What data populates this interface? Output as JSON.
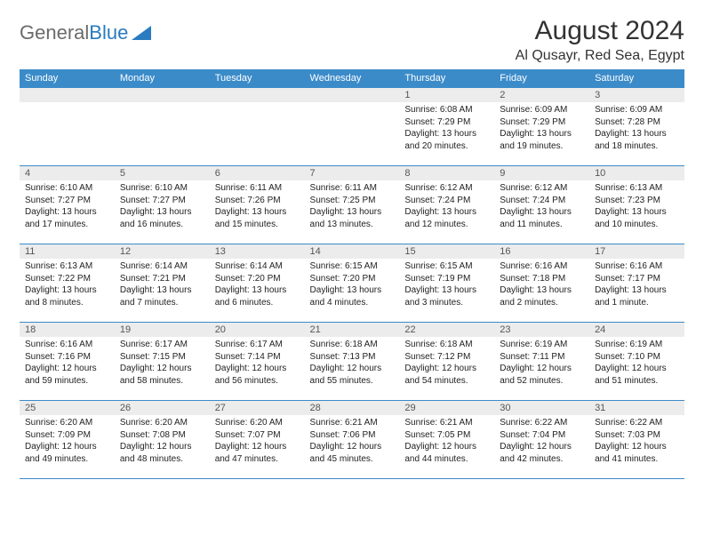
{
  "brand": {
    "word1": "General",
    "word2": "Blue"
  },
  "title": "August 2024",
  "location": "Al Qusayr, Red Sea, Egypt",
  "colors": {
    "header_bg": "#3b8bc9",
    "header_fg": "#ffffff",
    "daynum_bg": "#ececec",
    "border": "#3b8bc9",
    "logo_gray": "#6b6b6b",
    "logo_blue": "#2a7bbf",
    "text": "#222222"
  },
  "weekdays": [
    "Sunday",
    "Monday",
    "Tuesday",
    "Wednesday",
    "Thursday",
    "Friday",
    "Saturday"
  ],
  "weeks": [
    [
      {
        "n": "",
        "sr": "",
        "ss": "",
        "dl": ""
      },
      {
        "n": "",
        "sr": "",
        "ss": "",
        "dl": ""
      },
      {
        "n": "",
        "sr": "",
        "ss": "",
        "dl": ""
      },
      {
        "n": "",
        "sr": "",
        "ss": "",
        "dl": ""
      },
      {
        "n": "1",
        "sr": "Sunrise: 6:08 AM",
        "ss": "Sunset: 7:29 PM",
        "dl": "Daylight: 13 hours and 20 minutes."
      },
      {
        "n": "2",
        "sr": "Sunrise: 6:09 AM",
        "ss": "Sunset: 7:29 PM",
        "dl": "Daylight: 13 hours and 19 minutes."
      },
      {
        "n": "3",
        "sr": "Sunrise: 6:09 AM",
        "ss": "Sunset: 7:28 PM",
        "dl": "Daylight: 13 hours and 18 minutes."
      }
    ],
    [
      {
        "n": "4",
        "sr": "Sunrise: 6:10 AM",
        "ss": "Sunset: 7:27 PM",
        "dl": "Daylight: 13 hours and 17 minutes."
      },
      {
        "n": "5",
        "sr": "Sunrise: 6:10 AM",
        "ss": "Sunset: 7:27 PM",
        "dl": "Daylight: 13 hours and 16 minutes."
      },
      {
        "n": "6",
        "sr": "Sunrise: 6:11 AM",
        "ss": "Sunset: 7:26 PM",
        "dl": "Daylight: 13 hours and 15 minutes."
      },
      {
        "n": "7",
        "sr": "Sunrise: 6:11 AM",
        "ss": "Sunset: 7:25 PM",
        "dl": "Daylight: 13 hours and 13 minutes."
      },
      {
        "n": "8",
        "sr": "Sunrise: 6:12 AM",
        "ss": "Sunset: 7:24 PM",
        "dl": "Daylight: 13 hours and 12 minutes."
      },
      {
        "n": "9",
        "sr": "Sunrise: 6:12 AM",
        "ss": "Sunset: 7:24 PM",
        "dl": "Daylight: 13 hours and 11 minutes."
      },
      {
        "n": "10",
        "sr": "Sunrise: 6:13 AM",
        "ss": "Sunset: 7:23 PM",
        "dl": "Daylight: 13 hours and 10 minutes."
      }
    ],
    [
      {
        "n": "11",
        "sr": "Sunrise: 6:13 AM",
        "ss": "Sunset: 7:22 PM",
        "dl": "Daylight: 13 hours and 8 minutes."
      },
      {
        "n": "12",
        "sr": "Sunrise: 6:14 AM",
        "ss": "Sunset: 7:21 PM",
        "dl": "Daylight: 13 hours and 7 minutes."
      },
      {
        "n": "13",
        "sr": "Sunrise: 6:14 AM",
        "ss": "Sunset: 7:20 PM",
        "dl": "Daylight: 13 hours and 6 minutes."
      },
      {
        "n": "14",
        "sr": "Sunrise: 6:15 AM",
        "ss": "Sunset: 7:20 PM",
        "dl": "Daylight: 13 hours and 4 minutes."
      },
      {
        "n": "15",
        "sr": "Sunrise: 6:15 AM",
        "ss": "Sunset: 7:19 PM",
        "dl": "Daylight: 13 hours and 3 minutes."
      },
      {
        "n": "16",
        "sr": "Sunrise: 6:16 AM",
        "ss": "Sunset: 7:18 PM",
        "dl": "Daylight: 13 hours and 2 minutes."
      },
      {
        "n": "17",
        "sr": "Sunrise: 6:16 AM",
        "ss": "Sunset: 7:17 PM",
        "dl": "Daylight: 13 hours and 1 minute."
      }
    ],
    [
      {
        "n": "18",
        "sr": "Sunrise: 6:16 AM",
        "ss": "Sunset: 7:16 PM",
        "dl": "Daylight: 12 hours and 59 minutes."
      },
      {
        "n": "19",
        "sr": "Sunrise: 6:17 AM",
        "ss": "Sunset: 7:15 PM",
        "dl": "Daylight: 12 hours and 58 minutes."
      },
      {
        "n": "20",
        "sr": "Sunrise: 6:17 AM",
        "ss": "Sunset: 7:14 PM",
        "dl": "Daylight: 12 hours and 56 minutes."
      },
      {
        "n": "21",
        "sr": "Sunrise: 6:18 AM",
        "ss": "Sunset: 7:13 PM",
        "dl": "Daylight: 12 hours and 55 minutes."
      },
      {
        "n": "22",
        "sr": "Sunrise: 6:18 AM",
        "ss": "Sunset: 7:12 PM",
        "dl": "Daylight: 12 hours and 54 minutes."
      },
      {
        "n": "23",
        "sr": "Sunrise: 6:19 AM",
        "ss": "Sunset: 7:11 PM",
        "dl": "Daylight: 12 hours and 52 minutes."
      },
      {
        "n": "24",
        "sr": "Sunrise: 6:19 AM",
        "ss": "Sunset: 7:10 PM",
        "dl": "Daylight: 12 hours and 51 minutes."
      }
    ],
    [
      {
        "n": "25",
        "sr": "Sunrise: 6:20 AM",
        "ss": "Sunset: 7:09 PM",
        "dl": "Daylight: 12 hours and 49 minutes."
      },
      {
        "n": "26",
        "sr": "Sunrise: 6:20 AM",
        "ss": "Sunset: 7:08 PM",
        "dl": "Daylight: 12 hours and 48 minutes."
      },
      {
        "n": "27",
        "sr": "Sunrise: 6:20 AM",
        "ss": "Sunset: 7:07 PM",
        "dl": "Daylight: 12 hours and 47 minutes."
      },
      {
        "n": "28",
        "sr": "Sunrise: 6:21 AM",
        "ss": "Sunset: 7:06 PM",
        "dl": "Daylight: 12 hours and 45 minutes."
      },
      {
        "n": "29",
        "sr": "Sunrise: 6:21 AM",
        "ss": "Sunset: 7:05 PM",
        "dl": "Daylight: 12 hours and 44 minutes."
      },
      {
        "n": "30",
        "sr": "Sunrise: 6:22 AM",
        "ss": "Sunset: 7:04 PM",
        "dl": "Daylight: 12 hours and 42 minutes."
      },
      {
        "n": "31",
        "sr": "Sunrise: 6:22 AM",
        "ss": "Sunset: 7:03 PM",
        "dl": "Daylight: 12 hours and 41 minutes."
      }
    ]
  ]
}
